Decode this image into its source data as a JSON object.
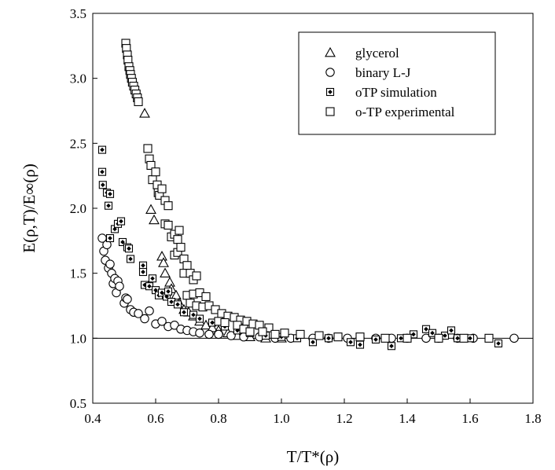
{
  "chart_data": {
    "type": "scatter",
    "xlabel": "T/T*(ρ)",
    "ylabel": "E(ρ,T)/E∞(ρ)",
    "xlim": [
      0.4,
      1.8
    ],
    "ylim": [
      0.5,
      3.5
    ],
    "x_ticks": [
      "0.4",
      "0.6",
      "0.8",
      "1.0",
      "1.2",
      "1.4",
      "1.6",
      "1.8"
    ],
    "y_ticks": [
      "0.5",
      "1.0",
      "1.5",
      "2.0",
      "2.5",
      "3.0",
      "3.5"
    ],
    "reference_line_y": 1.0,
    "grid": false,
    "legend_position": "top-right",
    "series": [
      {
        "name": "glycerol",
        "marker": "open-triangle",
        "color": "#000000",
        "points": [
          [
            0.565,
            2.73
          ],
          [
            0.585,
            1.99
          ],
          [
            0.595,
            1.91
          ],
          [
            0.62,
            1.63
          ],
          [
            0.625,
            1.58
          ],
          [
            0.63,
            1.5
          ],
          [
            0.645,
            1.43
          ],
          [
            0.65,
            1.38
          ],
          [
            0.665,
            1.33
          ],
          [
            0.675,
            1.27
          ],
          [
            0.69,
            1.22
          ],
          [
            0.705,
            1.2
          ],
          [
            0.72,
            1.17
          ],
          [
            0.74,
            1.13
          ],
          [
            0.76,
            1.1
          ],
          [
            0.78,
            1.08
          ],
          [
            0.8,
            1.06
          ],
          [
            0.83,
            1.04
          ],
          [
            0.86,
            1.02
          ],
          [
            0.9,
            1.01
          ],
          [
            0.95,
            1.0
          ],
          [
            1.0,
            1.0
          ]
        ]
      },
      {
        "name": "binary L-J",
        "marker": "open-circle",
        "color": "#000000",
        "points": [
          [
            0.43,
            1.77
          ],
          [
            0.435,
            1.67
          ],
          [
            0.44,
            1.6
          ],
          [
            0.445,
            1.72
          ],
          [
            0.45,
            1.54
          ],
          [
            0.455,
            1.57
          ],
          [
            0.46,
            1.5
          ],
          [
            0.465,
            1.42
          ],
          [
            0.47,
            1.46
          ],
          [
            0.475,
            1.35
          ],
          [
            0.48,
            1.44
          ],
          [
            0.485,
            1.4
          ],
          [
            0.5,
            1.27
          ],
          [
            0.505,
            1.31
          ],
          [
            0.51,
            1.3
          ],
          [
            0.52,
            1.22
          ],
          [
            0.53,
            1.2
          ],
          [
            0.545,
            1.19
          ],
          [
            0.565,
            1.15
          ],
          [
            0.58,
            1.21
          ],
          [
            0.6,
            1.11
          ],
          [
            0.62,
            1.13
          ],
          [
            0.64,
            1.09
          ],
          [
            0.66,
            1.1
          ],
          [
            0.68,
            1.07
          ],
          [
            0.7,
            1.06
          ],
          [
            0.72,
            1.05
          ],
          [
            0.74,
            1.04
          ],
          [
            0.77,
            1.03
          ],
          [
            0.8,
            1.03
          ],
          [
            0.84,
            1.02
          ],
          [
            0.88,
            1.01
          ],
          [
            0.93,
            1.01
          ],
          [
            0.98,
            1.0
          ],
          [
            1.03,
            1.0
          ],
          [
            1.1,
            1.0
          ],
          [
            1.15,
            1.0
          ],
          [
            1.21,
            1.0
          ],
          [
            1.25,
            1.0
          ],
          [
            1.3,
            1.0
          ],
          [
            1.35,
            1.0
          ],
          [
            1.4,
            1.0
          ],
          [
            1.46,
            1.0
          ],
          [
            1.5,
            1.0
          ],
          [
            1.56,
            1.0
          ],
          [
            1.61,
            1.0
          ],
          [
            1.74,
            1.0
          ]
        ]
      },
      {
        "name": "oTP simulation",
        "marker": "square-with-dot",
        "color": "#000000",
        "points": [
          [
            0.43,
            2.45
          ],
          [
            0.43,
            2.28
          ],
          [
            0.432,
            2.18
          ],
          [
            0.445,
            2.12
          ],
          [
            0.455,
            2.11
          ],
          [
            0.45,
            2.02
          ],
          [
            0.455,
            1.77
          ],
          [
            0.47,
            1.84
          ],
          [
            0.48,
            1.88
          ],
          [
            0.49,
            1.9
          ],
          [
            0.495,
            1.74
          ],
          [
            0.51,
            1.7
          ],
          [
            0.515,
            1.69
          ],
          [
            0.52,
            1.61
          ],
          [
            0.56,
            1.56
          ],
          [
            0.56,
            1.51
          ],
          [
            0.565,
            1.41
          ],
          [
            0.58,
            1.4
          ],
          [
            0.59,
            1.46
          ],
          [
            0.6,
            1.37
          ],
          [
            0.61,
            1.33
          ],
          [
            0.62,
            1.35
          ],
          [
            0.635,
            1.32
          ],
          [
            0.64,
            1.36
          ],
          [
            0.65,
            1.28
          ],
          [
            0.67,
            1.26
          ],
          [
            0.69,
            1.2
          ],
          [
            0.72,
            1.18
          ],
          [
            0.74,
            1.15
          ],
          [
            0.78,
            1.12
          ],
          [
            0.82,
            1.09
          ],
          [
            0.86,
            1.06
          ],
          [
            0.9,
            1.04
          ],
          [
            0.95,
            1.02
          ],
          [
            1.0,
            1.01
          ],
          [
            1.05,
            1.0
          ],
          [
            1.1,
            0.97
          ],
          [
            1.15,
            1.0
          ],
          [
            1.22,
            0.97
          ],
          [
            1.25,
            0.95
          ],
          [
            1.3,
            0.99
          ],
          [
            1.35,
            0.94
          ],
          [
            1.38,
            1.0
          ],
          [
            1.42,
            1.03
          ],
          [
            1.46,
            1.07
          ],
          [
            1.48,
            1.04
          ],
          [
            1.52,
            1.02
          ],
          [
            1.54,
            1.06
          ],
          [
            1.56,
            1.0
          ],
          [
            1.6,
            1.0
          ],
          [
            1.66,
            1.0
          ],
          [
            1.69,
            0.96
          ]
        ]
      },
      {
        "name": "o-TP experimental",
        "marker": "open-square",
        "color": "#000000",
        "points": [
          [
            0.505,
            3.27
          ],
          [
            0.507,
            3.23
          ],
          [
            0.51,
            3.18
          ],
          [
            0.512,
            3.14
          ],
          [
            0.515,
            3.09
          ],
          [
            0.518,
            3.06
          ],
          [
            0.52,
            3.03
          ],
          [
            0.523,
            3.0
          ],
          [
            0.526,
            2.97
          ],
          [
            0.53,
            2.94
          ],
          [
            0.534,
            2.91
          ],
          [
            0.538,
            2.88
          ],
          [
            0.542,
            2.85
          ],
          [
            0.545,
            2.82
          ],
          [
            0.575,
            2.46
          ],
          [
            0.58,
            2.38
          ],
          [
            0.585,
            2.33
          ],
          [
            0.59,
            2.22
          ],
          [
            0.6,
            2.28
          ],
          [
            0.605,
            2.18
          ],
          [
            0.608,
            2.12
          ],
          [
            0.612,
            2.1
          ],
          [
            0.62,
            2.15
          ],
          [
            0.63,
            2.06
          ],
          [
            0.64,
            2.02
          ],
          [
            0.63,
            1.88
          ],
          [
            0.64,
            1.87
          ],
          [
            0.65,
            1.78
          ],
          [
            0.66,
            1.8
          ],
          [
            0.67,
            1.76
          ],
          [
            0.675,
            1.83
          ],
          [
            0.66,
            1.64
          ],
          [
            0.67,
            1.66
          ],
          [
            0.68,
            1.7
          ],
          [
            0.69,
            1.61
          ],
          [
            0.7,
            1.56
          ],
          [
            0.69,
            1.5
          ],
          [
            0.71,
            1.5
          ],
          [
            0.72,
            1.45
          ],
          [
            0.73,
            1.48
          ],
          [
            0.7,
            1.33
          ],
          [
            0.72,
            1.34
          ],
          [
            0.74,
            1.35
          ],
          [
            0.76,
            1.32
          ],
          [
            0.71,
            1.27
          ],
          [
            0.73,
            1.25
          ],
          [
            0.75,
            1.24
          ],
          [
            0.77,
            1.25
          ],
          [
            0.79,
            1.22
          ],
          [
            0.81,
            1.19
          ],
          [
            0.83,
            1.17
          ],
          [
            0.85,
            1.16
          ],
          [
            0.87,
            1.14
          ],
          [
            0.89,
            1.13
          ],
          [
            0.91,
            1.11
          ],
          [
            0.93,
            1.1
          ],
          [
            0.96,
            1.08
          ],
          [
            0.8,
            1.13
          ],
          [
            0.82,
            1.12
          ],
          [
            0.86,
            1.1
          ],
          [
            0.88,
            1.07
          ],
          [
            0.9,
            1.05
          ],
          [
            0.94,
            1.05
          ],
          [
            0.98,
            1.03
          ],
          [
            1.01,
            1.04
          ],
          [
            1.06,
            1.03
          ],
          [
            1.12,
            1.02
          ],
          [
            1.18,
            1.01
          ],
          [
            1.25,
            1.01
          ],
          [
            1.33,
            1.0
          ],
          [
            1.4,
            1.0
          ],
          [
            1.5,
            1.0
          ],
          [
            1.58,
            1.0
          ],
          [
            1.66,
            1.0
          ]
        ]
      }
    ]
  }
}
